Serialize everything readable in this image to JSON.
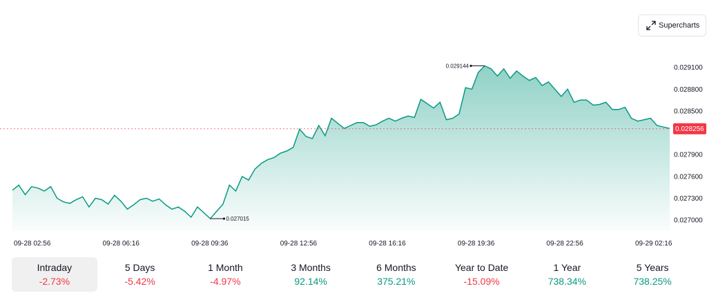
{
  "toolbar": {
    "supercharts_label": "Supercharts",
    "icon": "expand-arrows-icon"
  },
  "colors": {
    "line": "#089981",
    "negative": "#f23645",
    "positive": "#089981",
    "last_price_bg": "#f23645"
  },
  "chart_data": {
    "type": "area",
    "ylim": [
      0.02685,
      0.02922
    ],
    "y_ticks": [
      "0.029100",
      "0.028800",
      "0.028500",
      "0.027900",
      "0.027600",
      "0.027300",
      "0.027000"
    ],
    "x_ticks": [
      "09-28 02:56",
      "09-28 06:16",
      "09-28 09:36",
      "09-28 12:56",
      "09-28 16:16",
      "09-28 19:36",
      "09-28 22:56",
      "09-29 02:16"
    ],
    "last_price": "0.028256",
    "high_label": "0.029144",
    "low_label": "0.027015",
    "series": [
      {
        "values": [
          0.02741,
          0.02748,
          0.02735,
          0.02746,
          0.02744,
          0.0274,
          0.02746,
          0.0273,
          0.02725,
          0.02723,
          0.02728,
          0.02732,
          0.02718,
          0.0273,
          0.02728,
          0.02722,
          0.02734,
          0.02726,
          0.02715,
          0.02721,
          0.02728,
          0.0273,
          0.02726,
          0.02729,
          0.02721,
          0.02715,
          0.02718,
          0.02712,
          0.02704,
          0.02718,
          0.0271,
          0.02702,
          0.02712,
          0.02722,
          0.02748,
          0.0274,
          0.0276,
          0.02755,
          0.0277,
          0.02778,
          0.02783,
          0.02786,
          0.02792,
          0.02795,
          0.028,
          0.02825,
          0.02815,
          0.02812,
          0.0283,
          0.02816,
          0.0284,
          0.02833,
          0.02826,
          0.0283,
          0.02834,
          0.02834,
          0.02829,
          0.02831,
          0.02836,
          0.0284,
          0.02836,
          0.0284,
          0.02843,
          0.02841,
          0.02866,
          0.0286,
          0.02854,
          0.02862,
          0.02838,
          0.0284,
          0.02846,
          0.02882,
          0.0288,
          0.02903,
          0.02912,
          0.02908,
          0.02898,
          0.02908,
          0.02895,
          0.02905,
          0.02898,
          0.02892,
          0.02896,
          0.02885,
          0.0289,
          0.0288,
          0.0287,
          0.0288,
          0.02862,
          0.02865,
          0.02865,
          0.02858,
          0.02859,
          0.02862,
          0.02852,
          0.02852,
          0.02855,
          0.0284,
          0.02836,
          0.02838,
          0.0284,
          0.0283,
          0.02828,
          0.02826
        ]
      }
    ]
  },
  "periods": [
    {
      "label": "Intraday",
      "value": "-2.73%",
      "trend": "neg",
      "active": true
    },
    {
      "label": "5 Days",
      "value": "-5.42%",
      "trend": "neg",
      "active": false
    },
    {
      "label": "1 Month",
      "value": "-4.97%",
      "trend": "neg",
      "active": false
    },
    {
      "label": "3 Months",
      "value": "92.14%",
      "trend": "pos",
      "active": false
    },
    {
      "label": "6 Months",
      "value": "375.21%",
      "trend": "pos",
      "active": false
    },
    {
      "label": "Year to Date",
      "value": "-15.09%",
      "trend": "neg",
      "active": false
    },
    {
      "label": "1 Year",
      "value": "738.34%",
      "trend": "pos",
      "active": false
    },
    {
      "label": "5 Years",
      "value": "738.25%",
      "trend": "pos",
      "active": false
    }
  ]
}
